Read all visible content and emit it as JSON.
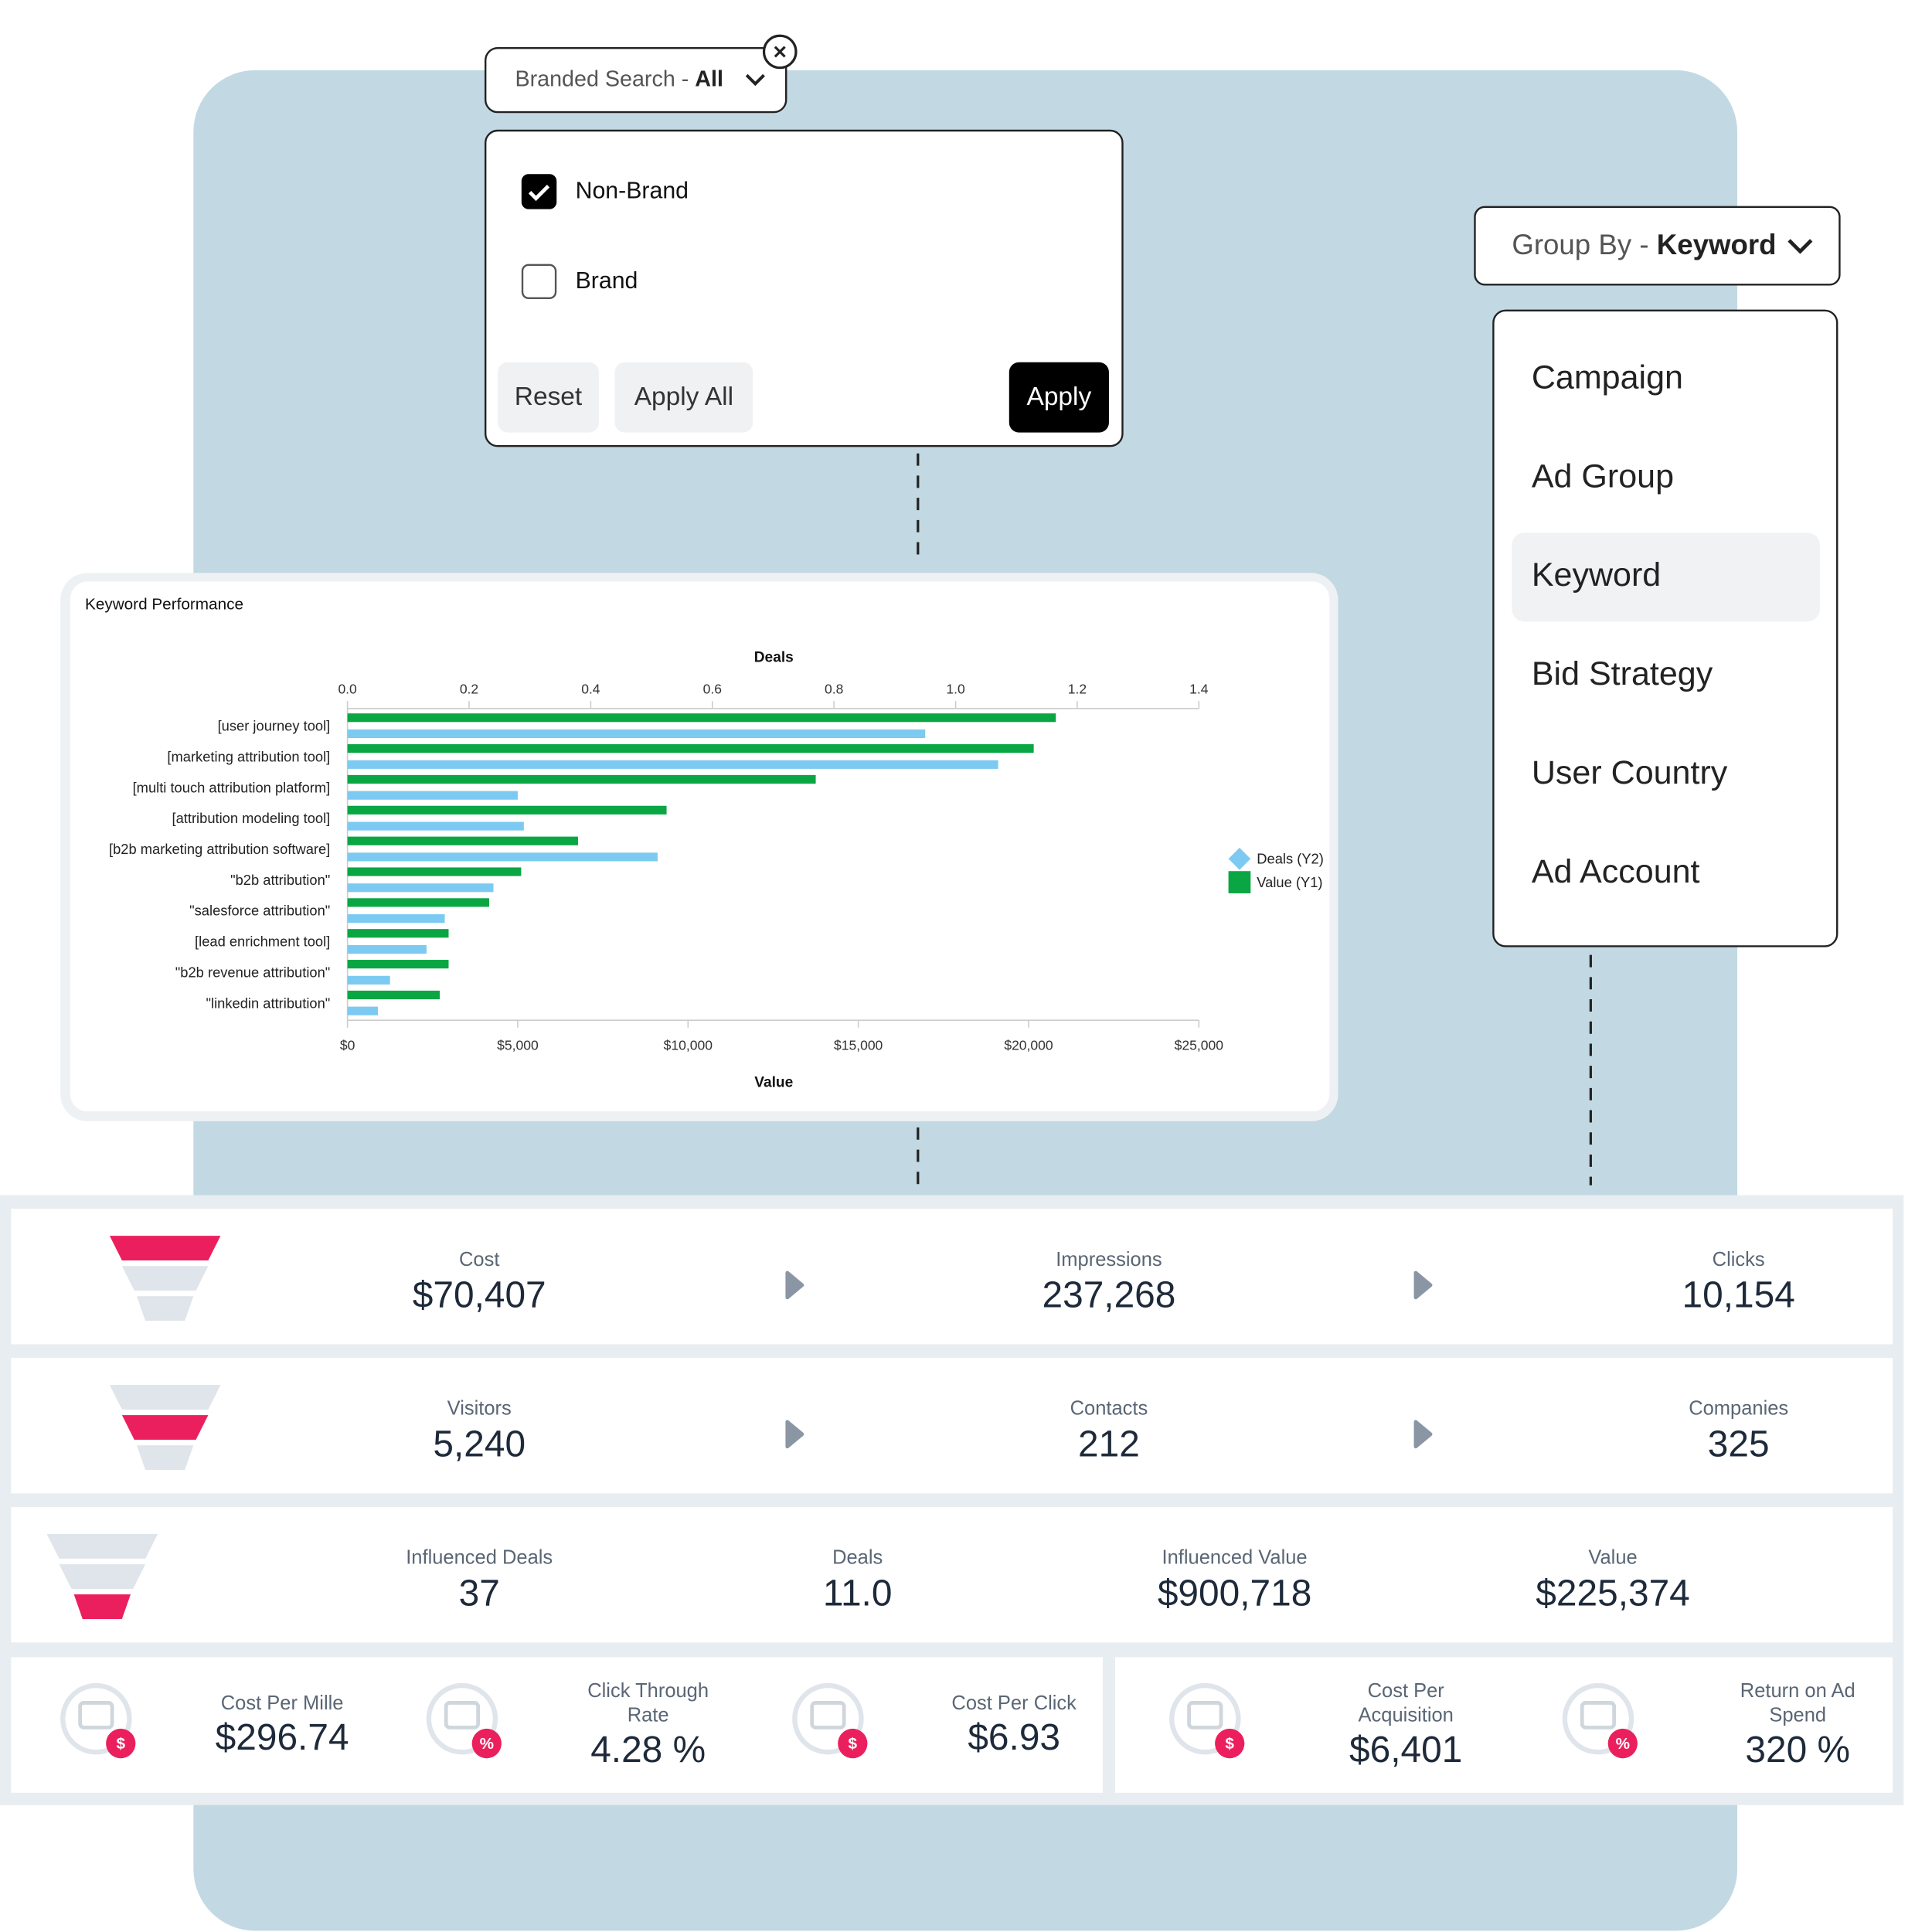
{
  "branded_search": {
    "label": "Branded Search -",
    "value": "All",
    "options": [
      {
        "label": "Non-Brand",
        "checked": true
      },
      {
        "label": "Brand",
        "checked": false
      }
    ],
    "buttons": [
      "Reset",
      "Apply All",
      "Apply"
    ]
  },
  "group_by": {
    "label": "Group By -",
    "value": "Keyword",
    "options": [
      "Campaign",
      "Ad Group",
      "Keyword",
      "Bid Strategy",
      "User Country",
      "Ad Account"
    ],
    "selected": 2
  },
  "chart_data": {
    "type": "bar",
    "orientation": "horizontal",
    "title": "Keyword Performance",
    "xlabel": "Value",
    "x2label": "Deals",
    "categories": [
      "[user journey tool]",
      "[marketing attribution tool]",
      "[multi touch attribution platform]",
      "[attribution modeling tool]",
      "[b2b marketing attribution software]",
      "\"b2b attribution\"",
      "\"salesforce attribution\"",
      "[lead enrichment tool]",
      "\"b2b revenue attribution\"",
      "\"linkedin attribution\""
    ],
    "series": [
      {
        "name": "Deals (Y2)",
        "color": "#7ccaf2",
        "axis": "x2",
        "values": [
          0.95,
          1.07,
          0.28,
          0.29,
          0.51,
          0.24,
          0.16,
          0.13,
          0.07,
          0.05
        ]
      },
      {
        "name": "Value (Y1)",
        "color": "#0aa644",
        "values": [
          20800,
          20150,
          13750,
          9370,
          6770,
          5100,
          4160,
          2970,
          2970,
          2710
        ]
      }
    ],
    "xlim": [
      0,
      25000
    ],
    "xticks": [
      {
        "value": 0,
        "label": "$0"
      },
      {
        "value": 5000,
        "label": "$5,000"
      },
      {
        "value": 10000,
        "label": "$10,000"
      },
      {
        "value": 15000,
        "label": "$15,000"
      },
      {
        "value": 20000,
        "label": "$20,000"
      },
      {
        "value": 25000,
        "label": "$25,000"
      }
    ],
    "x2lim": [
      0,
      1.4
    ],
    "x2ticks": [
      {
        "value": 0,
        "label": "0.0"
      },
      0.2,
      0.4,
      0.6,
      0.8,
      {
        "value": 1,
        "label": "1.0"
      },
      1.2,
      1.4
    ]
  },
  "funnel_rows": [
    [
      {
        "label": "Cost",
        "value": "$70,407"
      },
      {
        "label": "Impressions",
        "value": "237,268"
      },
      {
        "label": "Clicks",
        "value": "10,154"
      }
    ],
    [
      {
        "label": "Visitors",
        "value": "5,240"
      },
      {
        "label": "Contacts",
        "value": "212"
      },
      {
        "label": "Companies",
        "value": "325"
      }
    ],
    [
      {
        "label": "Influenced Deals",
        "value": "37"
      },
      {
        "label": "Deals",
        "value": "11.0"
      },
      {
        "label": "Influenced Value",
        "value": "$900,718"
      },
      {
        "label": "Value",
        "value": "$225,374"
      }
    ]
  ],
  "ratios": [
    {
      "label": [
        "Cost Per Mille"
      ],
      "value": "$296.74",
      "badge": "$"
    },
    {
      "label": [
        "Click Through",
        "Rate"
      ],
      "value": "4.28 %",
      "badge": "%"
    },
    {
      "label": [
        "Cost Per Click"
      ],
      "value": "$6.93",
      "badge": "$"
    },
    {
      "label": [
        "Cost Per",
        "Acquisition"
      ],
      "value": "$6,401",
      "badge": "$"
    },
    {
      "label": [
        "Return on Ad",
        "Spend"
      ],
      "value": "320 %",
      "badge": "%"
    }
  ]
}
